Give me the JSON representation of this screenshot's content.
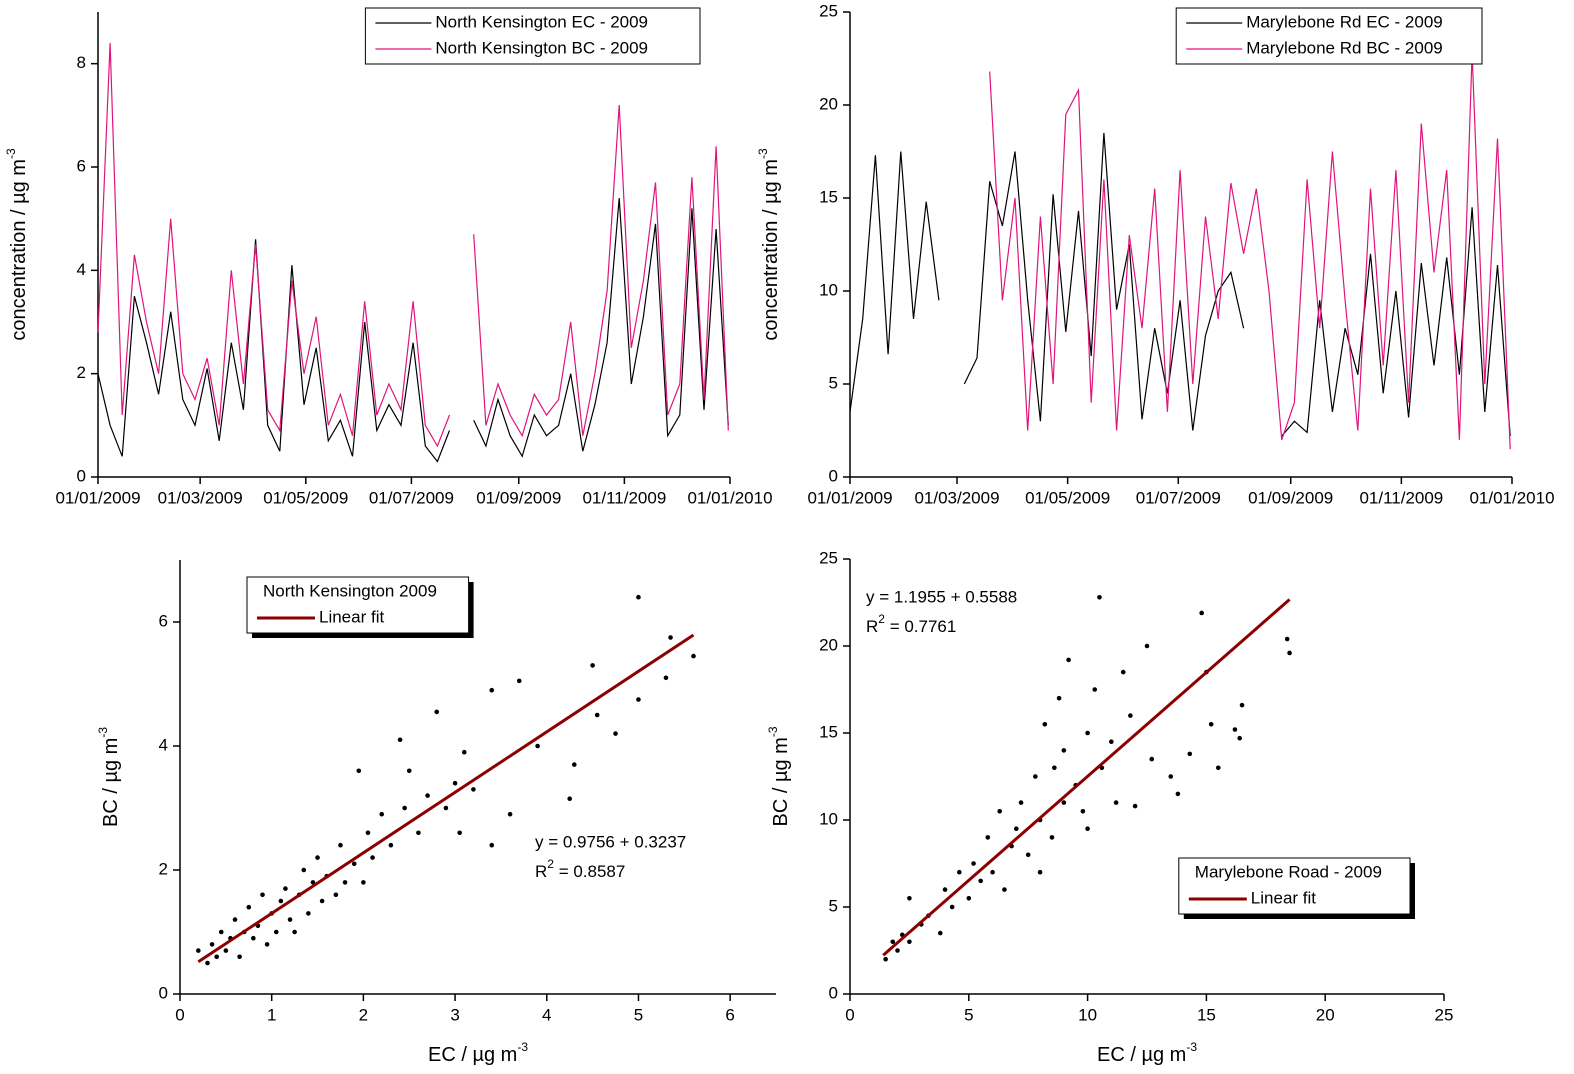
{
  "chart_data": [
    {
      "type": "line",
      "ylabel": "concentration / µg m",
      "ylabel_sup": "-3",
      "x": [
        "01/01/2009",
        "08/01/2009",
        "15/01/2009",
        "22/01/2009",
        "29/01/2009",
        "05/02/2009",
        "12/02/2009",
        "19/02/2009",
        "26/02/2009",
        "05/03/2009",
        "12/03/2009",
        "19/03/2009",
        "26/03/2009",
        "02/04/2009",
        "09/04/2009",
        "16/04/2009",
        "23/04/2009",
        "30/04/2009",
        "07/05/2009",
        "14/05/2009",
        "21/05/2009",
        "28/05/2009",
        "04/06/2009",
        "11/06/2009",
        "18/06/2009",
        "25/06/2009",
        "02/07/2009",
        "09/07/2009",
        "16/07/2009",
        "23/07/2009",
        "30/07/2009",
        "06/08/2009",
        "13/08/2009",
        "20/08/2009",
        "27/08/2009",
        "03/09/2009",
        "10/09/2009",
        "17/09/2009",
        "24/09/2009",
        "01/10/2009",
        "08/10/2009",
        "15/10/2009",
        "22/10/2009",
        "29/10/2009",
        "05/11/2009",
        "12/11/2009",
        "19/11/2009",
        "26/11/2009",
        "03/12/2009",
        "10/12/2009",
        "17/12/2009",
        "24/12/2009",
        "31/12/2009"
      ],
      "series": [
        {
          "name": "North Kensington EC - 2009",
          "color": "#000000",
          "values": [
            2.0,
            1.0,
            0.4,
            3.5,
            2.6,
            1.6,
            3.2,
            1.5,
            1.0,
            2.1,
            0.7,
            2.6,
            1.3,
            4.6,
            1.0,
            0.5,
            4.1,
            1.4,
            2.5,
            0.7,
            1.1,
            0.4,
            3.0,
            0.9,
            1.4,
            1.0,
            2.6,
            0.6,
            0.3,
            0.9,
            null,
            1.1,
            0.6,
            1.5,
            0.8,
            0.4,
            1.2,
            0.8,
            1.0,
            2.0,
            0.5,
            1.4,
            2.6,
            5.4,
            1.8,
            3.1,
            4.9,
            0.8,
            1.2,
            5.2,
            1.3,
            4.8,
            1.0
          ]
        },
        {
          "name": "North Kensington BC - 2009",
          "color": "#e0147d",
          "values": [
            2.8,
            8.4,
            1.2,
            4.3,
            3.0,
            2.0,
            5.0,
            2.0,
            1.5,
            2.3,
            1.0,
            4.0,
            1.8,
            4.5,
            1.3,
            0.9,
            3.8,
            2.0,
            3.1,
            1.0,
            1.6,
            0.8,
            3.4,
            1.2,
            1.8,
            1.3,
            3.4,
            1.0,
            0.6,
            1.2,
            null,
            4.7,
            1.0,
            1.8,
            1.2,
            0.8,
            1.6,
            1.2,
            1.5,
            3.0,
            0.8,
            2.0,
            3.6,
            7.2,
            2.5,
            3.8,
            5.7,
            1.2,
            1.8,
            5.8,
            1.5,
            6.4,
            0.9
          ]
        }
      ],
      "xlim": [
        "01/01/2009",
        "01/01/2010"
      ],
      "xticks": [
        "01/01/2009",
        "01/03/2009",
        "01/05/2009",
        "01/07/2009",
        "01/09/2009",
        "01/11/2009",
        "01/01/2010"
      ],
      "ylim": [
        0,
        9
      ],
      "yticks": [
        0,
        2,
        4,
        6,
        8
      ],
      "legend": "upper right"
    },
    {
      "type": "line",
      "ylabel": "concentration / µg m",
      "ylabel_sup": "-3",
      "x": [
        "01/01/2009",
        "08/01/2009",
        "15/01/2009",
        "22/01/2009",
        "29/01/2009",
        "05/02/2009",
        "12/02/2009",
        "19/02/2009",
        "26/02/2009",
        "05/03/2009",
        "12/03/2009",
        "19/03/2009",
        "26/03/2009",
        "02/04/2009",
        "09/04/2009",
        "16/04/2009",
        "23/04/2009",
        "30/04/2009",
        "07/05/2009",
        "14/05/2009",
        "21/05/2009",
        "28/05/2009",
        "04/06/2009",
        "11/06/2009",
        "18/06/2009",
        "25/06/2009",
        "02/07/2009",
        "09/07/2009",
        "16/07/2009",
        "23/07/2009",
        "30/07/2009",
        "06/08/2009",
        "13/08/2009",
        "20/08/2009",
        "27/08/2009",
        "03/09/2009",
        "10/09/2009",
        "17/09/2009",
        "24/09/2009",
        "01/10/2009",
        "08/10/2009",
        "15/10/2009",
        "22/10/2009",
        "29/10/2009",
        "05/11/2009",
        "12/11/2009",
        "19/11/2009",
        "26/11/2009",
        "03/12/2009",
        "10/12/2009",
        "17/12/2009",
        "24/12/2009",
        "31/12/2009"
      ],
      "series": [
        {
          "name": "Marylebone Rd EC - 2009",
          "color": "#000000",
          "values": [
            3.5,
            8.5,
            17.3,
            6.6,
            17.5,
            8.5,
            14.8,
            9.5,
            null,
            5.0,
            6.4,
            15.9,
            13.5,
            17.5,
            9.5,
            3.0,
            15.2,
            7.8,
            14.3,
            6.5,
            18.5,
            9.0,
            12.5,
            3.1,
            8.0,
            4.5,
            9.5,
            2.5,
            7.6,
            10.0,
            11.0,
            8.0,
            null,
            null,
            2.2,
            3.0,
            2.4,
            9.5,
            3.5,
            8.0,
            5.5,
            12.0,
            4.5,
            10.0,
            3.2,
            11.5,
            6.0,
            11.8,
            5.5,
            14.5,
            3.5,
            11.4,
            2.2
          ]
        },
        {
          "name": "Marylebone Rd BC - 2009",
          "color": "#e0147d",
          "values": [
            null,
            null,
            null,
            null,
            null,
            null,
            null,
            null,
            null,
            null,
            null,
            21.8,
            9.5,
            15.0,
            2.5,
            14.0,
            5.0,
            19.5,
            20.8,
            4.0,
            16.0,
            2.5,
            13.0,
            8.0,
            15.5,
            3.5,
            16.5,
            5.0,
            14.0,
            8.5,
            15.8,
            12.0,
            15.5,
            10.0,
            2.0,
            4.0,
            16.0,
            8.0,
            17.5,
            9.5,
            2.5,
            15.5,
            6.0,
            16.5,
            4.0,
            19.0,
            11.0,
            16.5,
            2.0,
            22.8,
            5.0,
            18.2,
            1.5
          ]
        }
      ],
      "xlim": [
        "01/01/2009",
        "01/01/2010"
      ],
      "xticks": [
        "01/01/2009",
        "01/03/2009",
        "01/05/2009",
        "01/07/2009",
        "01/09/2009",
        "01/11/2009",
        "01/01/2010"
      ],
      "ylim": [
        0,
        25
      ],
      "yticks": [
        0,
        5,
        10,
        15,
        20,
        25
      ],
      "legend": "upper right"
    },
    {
      "type": "scatter",
      "xlabel": "EC / µg m",
      "xlabel_sup": "-3",
      "ylabel": "BC / µg m",
      "ylabel_sup": "-3",
      "legend_title": "North Kensington 2009",
      "legend": "upper left",
      "equation": "y = 0.9756 + 0.3237",
      "r2": [
        "R",
        "2",
        " = 0.8587"
      ],
      "series": [
        {
          "color": "#000000",
          "x": [
            0.2,
            0.3,
            0.35,
            0.4,
            0.45,
            0.5,
            0.55,
            0.6,
            0.65,
            0.7,
            0.75,
            0.8,
            0.85,
            0.9,
            0.95,
            1.0,
            1.05,
            1.1,
            1.15,
            1.2,
            1.25,
            1.3,
            1.35,
            1.4,
            1.45,
            1.5,
            1.55,
            1.6,
            1.7,
            1.75,
            1.8,
            1.9,
            1.95,
            2.0,
            2.05,
            2.1,
            2.2,
            2.3,
            2.4,
            2.45,
            2.5,
            2.6,
            2.7,
            2.8,
            2.9,
            3.0,
            3.05,
            3.1,
            3.2,
            3.4,
            3.4,
            3.6,
            3.7,
            3.9,
            4.25,
            4.3,
            4.5,
            4.55,
            4.75,
            5.0,
            5.0,
            5.3,
            5.35,
            5.6
          ],
          "values": [
            0.7,
            0.5,
            0.8,
            0.6,
            1.0,
            0.7,
            0.9,
            1.2,
            0.6,
            1.0,
            1.4,
            0.9,
            1.1,
            1.6,
            0.8,
            1.3,
            1.0,
            1.5,
            1.7,
            1.2,
            1.0,
            1.6,
            2.0,
            1.3,
            1.8,
            2.2,
            1.5,
            1.9,
            1.6,
            2.4,
            1.8,
            2.1,
            3.6,
            1.8,
            2.6,
            2.2,
            2.9,
            2.4,
            4.1,
            3.0,
            3.6,
            2.6,
            3.2,
            4.55,
            3.0,
            3.4,
            2.6,
            3.9,
            3.3,
            2.4,
            4.9,
            2.9,
            5.05,
            4.0,
            3.15,
            3.7,
            5.3,
            4.5,
            4.2,
            6.4,
            4.75,
            5.1,
            5.75,
            5.45
          ]
        }
      ],
      "fit": {
        "name": "Linear fit",
        "color": "#8b0000",
        "x": [
          0.2,
          5.6
        ],
        "values": [
          0.52,
          5.79
        ]
      },
      "xlim": [
        0,
        6.5
      ],
      "xticks": [
        0,
        1,
        2,
        3,
        4,
        5,
        6
      ],
      "ylim": [
        0,
        7
      ],
      "yticks": [
        0,
        2,
        4,
        6
      ]
    },
    {
      "type": "scatter",
      "xlabel": "EC / µg m",
      "xlabel_sup": "-3",
      "ylabel": "BC / µg m",
      "ylabel_sup": "-3",
      "legend_title": "Marylebone Road - 2009",
      "legend": "lower right",
      "equation": "y = 1.1955 + 0.5588",
      "r2": [
        "R",
        "2",
        " = 0.7761"
      ],
      "series": [
        {
          "color": "#000000",
          "x": [
            1.5,
            1.8,
            2,
            2.2,
            2.5,
            2.5,
            3,
            3.3,
            3.8,
            4,
            4.3,
            4.6,
            5,
            5.2,
            5.5,
            5.8,
            6,
            6.3,
            6.5,
            6.8,
            7,
            7.2,
            7.5,
            7.8,
            8,
            8,
            8.2,
            8.5,
            8.6,
            8.8,
            9,
            9,
            9.2,
            9.5,
            9.8,
            10,
            10,
            10.3,
            10.5,
            10.6,
            11,
            11.2,
            11.5,
            11.8,
            12,
            12.5,
            12.7,
            13.5,
            13.8,
            14.3,
            14.8,
            15,
            15.2,
            15.5,
            16.2,
            16.5,
            16.4,
            18.4,
            18.5
          ],
          "values": [
            2,
            3,
            2.5,
            3.4,
            5.5,
            3,
            4,
            4.5,
            3.5,
            6,
            5,
            7,
            5.5,
            7.5,
            6.5,
            9,
            7,
            10.5,
            6,
            8.5,
            9.5,
            11,
            8,
            12.5,
            7,
            10,
            15.5,
            9,
            13,
            17,
            11,
            14,
            19.2,
            12,
            10.5,
            15,
            9.5,
            17.5,
            22.8,
            13,
            14.5,
            11,
            18.5,
            16,
            10.8,
            20,
            13.5,
            12.5,
            11.5,
            13.8,
            21.9,
            18.5,
            15.5,
            13,
            15.2,
            16.6,
            14.7,
            20.4,
            19.6
          ]
        }
      ],
      "fit": {
        "name": "Linear fit",
        "color": "#8b0000",
        "x": [
          1.4,
          18.5
        ],
        "values": [
          2.23,
          22.67
        ]
      },
      "xlim": [
        0,
        25
      ],
      "xticks": [
        0,
        5,
        10,
        15,
        20,
        25
      ],
      "ylim": [
        0,
        25
      ],
      "yticks": [
        0,
        5,
        10,
        15,
        20,
        25
      ]
    }
  ]
}
